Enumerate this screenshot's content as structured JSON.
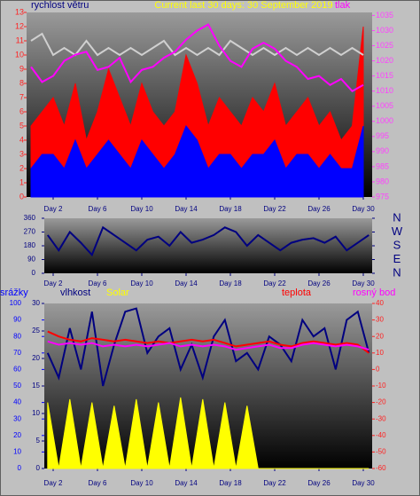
{
  "chart_data": [
    {
      "type": "line",
      "title": "Current last 30 days: 30 September 2019",
      "ylabel": "rychlost větru",
      "y2label": "tlak",
      "x": [
        0,
        1,
        2,
        3,
        4,
        5,
        6,
        7,
        8,
        9,
        10,
        11,
        12,
        13,
        14,
        15,
        16,
        17,
        18,
        19,
        20,
        21,
        22,
        23,
        24,
        25,
        26,
        27,
        28,
        29,
        30
      ],
      "xlim": [
        -0.4,
        30.8
      ],
      "xticks": [
        {
          "value": 2,
          "label": "Day 2"
        },
        {
          "value": 6,
          "label": "Day 6"
        },
        {
          "value": 10,
          "label": "Day 10"
        },
        {
          "value": 14,
          "label": "Day 14"
        },
        {
          "value": 18,
          "label": "Day 18"
        },
        {
          "value": 22,
          "label": "Day 22"
        },
        {
          "value": 26,
          "label": "Day 26"
        },
        {
          "value": 30,
          "label": "Day 30"
        }
      ],
      "ylim": [
        0,
        13
      ],
      "yticks": [
        0,
        1,
        2,
        3,
        4,
        5,
        6,
        7,
        8,
        9,
        10,
        11,
        12,
        13
      ],
      "y2lim": [
        975,
        1036
      ],
      "y2ticks": [
        975,
        980,
        985,
        990,
        995,
        1000,
        1005,
        1010,
        1015,
        1020,
        1025,
        1030,
        1035
      ],
      "series": [
        {
          "color": "#ff0000",
          "style": "area",
          "values": [
            5,
            6,
            7,
            5,
            8,
            4,
            6,
            9,
            7,
            5,
            8,
            6,
            5,
            6,
            10,
            8,
            5,
            7,
            6,
            5,
            7,
            6,
            8,
            5,
            6,
            7,
            5,
            6,
            4,
            5,
            12
          ]
        },
        {
          "color": "#0000ff",
          "style": "area",
          "values": [
            2,
            3,
            3,
            2,
            4,
            2,
            3,
            4,
            3,
            2,
            4,
            3,
            2,
            3,
            5,
            4,
            2,
            3,
            3,
            2,
            3,
            3,
            4,
            2,
            3,
            3,
            2,
            3,
            2,
            2,
            5
          ]
        },
        {
          "color": "#d0d0d0",
          "style": "line",
          "values": [
            11,
            11.5,
            10,
            10.5,
            10,
            11,
            10,
            10.5,
            10,
            10.5,
            10,
            10.5,
            11,
            10,
            10.5,
            10,
            10.5,
            10,
            11,
            10.5,
            10,
            10.5,
            10,
            10.5,
            10,
            10.5,
            10,
            10.5,
            10,
            10.5,
            10
          ]
        },
        {
          "color": "#ff00ff",
          "style": "line",
          "axis": "y2",
          "values": [
            1018,
            1013,
            1015,
            1020,
            1022,
            1023,
            1017,
            1018,
            1021,
            1013,
            1017,
            1018,
            1021,
            1023,
            1027,
            1030,
            1032,
            1025,
            1020,
            1018,
            1024,
            1026,
            1024,
            1020,
            1018,
            1014,
            1015,
            1012,
            1014,
            1010,
            1012
          ]
        }
      ]
    },
    {
      "type": "line",
      "x": [
        1.5,
        2.5,
        3.5,
        4.5,
        5.5,
        6.5,
        7.5,
        8.5,
        9.5,
        10.5,
        11.5,
        12.5,
        13.5,
        14.5,
        15.5,
        16.5,
        17.5,
        18.5,
        19.5,
        20.5,
        21.5,
        22.5,
        23.5,
        24.5,
        25.5,
        26.5,
        27.5,
        28.5,
        29.5,
        30.5
      ],
      "xlim": [
        1.2,
        30.8
      ],
      "xticks": [
        {
          "value": 2,
          "label": "Day 2"
        },
        {
          "value": 6,
          "label": "Day 6"
        },
        {
          "value": 10,
          "label": "Day 10"
        },
        {
          "value": 14,
          "label": "Day 14"
        },
        {
          "value": 18,
          "label": "Day 18"
        },
        {
          "value": 22,
          "label": "Day 22"
        },
        {
          "value": 26,
          "label": "Day 26"
        },
        {
          "value": 30,
          "label": "Day 30"
        }
      ],
      "ylim": [
        0,
        360
      ],
      "yticks": [
        0,
        90,
        180,
        270,
        360
      ],
      "y2lim": [
        0,
        360
      ],
      "y2ticks": [
        {
          "value": 0,
          "label": "N"
        },
        {
          "value": 90,
          "label": "E"
        },
        {
          "value": 180,
          "label": "S"
        },
        {
          "value": 270,
          "label": "W"
        },
        {
          "value": 360,
          "label": "N"
        }
      ],
      "series": [
        {
          "color": "#000080",
          "style": "line",
          "values": [
            250,
            150,
            270,
            200,
            120,
            300,
            250,
            200,
            150,
            220,
            240,
            180,
            270,
            200,
            220,
            250,
            300,
            270,
            180,
            250,
            200,
            150,
            200,
            220,
            230,
            200,
            240,
            150,
            200,
            250
          ]
        }
      ]
    },
    {
      "type": "line",
      "ylabel": "srážky",
      "x": [
        1.5,
        2.5,
        3.5,
        4.5,
        5.5,
        6.5,
        7.5,
        8.5,
        9.5,
        10.5,
        11.5,
        12.5,
        13.5,
        14.5,
        15.5,
        16.5,
        17.5,
        18.5,
        19.5,
        20.5,
        21.5,
        22.5,
        23.5,
        24.5,
        25.5,
        26.5,
        27.5,
        28.5,
        29.5,
        30.5
      ],
      "xlim": [
        1.2,
        30.8
      ],
      "xticks": [
        {
          "value": 2,
          "label": "Day 2"
        },
        {
          "value": 6,
          "label": "Day 6"
        },
        {
          "value": 10,
          "label": "Day 10"
        },
        {
          "value": 14,
          "label": "Day 14"
        },
        {
          "value": 18,
          "label": "Day 18"
        },
        {
          "value": 22,
          "label": "Day 22"
        },
        {
          "value": 26,
          "label": "Day 26"
        },
        {
          "value": 30,
          "label": "Day 30"
        }
      ],
      "ylim": [
        0,
        100
      ],
      "yticks": [
        0,
        10,
        20,
        30,
        40,
        50,
        60,
        70,
        80,
        90,
        100
      ],
      "y3lim": [
        0,
        30
      ],
      "y3ticks": [
        0,
        5,
        10,
        15,
        20,
        25,
        30
      ],
      "y2lim": [
        -60,
        40
      ],
      "y2ticks": [
        -60,
        -50,
        -40,
        -30,
        -20,
        -10,
        0,
        10,
        20,
        30,
        40
      ],
      "series": [
        {
          "name": "vlhkost",
          "color": "#000080",
          "style": "line",
          "values": [
            70,
            55,
            85,
            60,
            95,
            50,
            75,
            95,
            97,
            70,
            80,
            85,
            60,
            75,
            55,
            80,
            90,
            65,
            70,
            60,
            80,
            75,
            65,
            90,
            80,
            85,
            60,
            90,
            95,
            70
          ]
        },
        {
          "name": "Solar",
          "color": "#ffff00",
          "style": "area",
          "values": [
            40,
            0,
            42,
            0,
            40,
            0,
            38,
            0,
            42,
            0,
            40,
            0,
            43,
            0,
            42,
            0,
            40,
            0,
            38,
            0,
            0,
            0,
            0,
            0,
            0,
            0,
            0,
            0,
            0,
            0
          ]
        },
        {
          "name": "teplota",
          "color": "#ff0000",
          "style": "line",
          "axis": "y2",
          "values": [
            23,
            20,
            18,
            17,
            19,
            18,
            17,
            18,
            17,
            16,
            17,
            16,
            17,
            18,
            17,
            18,
            16,
            14,
            15,
            16,
            17,
            15,
            14,
            16,
            17,
            16,
            15,
            16,
            15,
            10
          ]
        },
        {
          "name": "rosný bod",
          "color": "#ff00ff",
          "style": "line",
          "axis": "y2",
          "values": [
            17,
            15,
            16,
            15,
            16,
            14,
            15,
            14,
            15,
            14,
            15,
            16,
            14,
            15,
            14,
            15,
            14,
            12,
            13,
            14,
            15,
            13,
            13,
            15,
            16,
            15,
            14,
            15,
            14,
            12
          ]
        }
      ]
    }
  ]
}
